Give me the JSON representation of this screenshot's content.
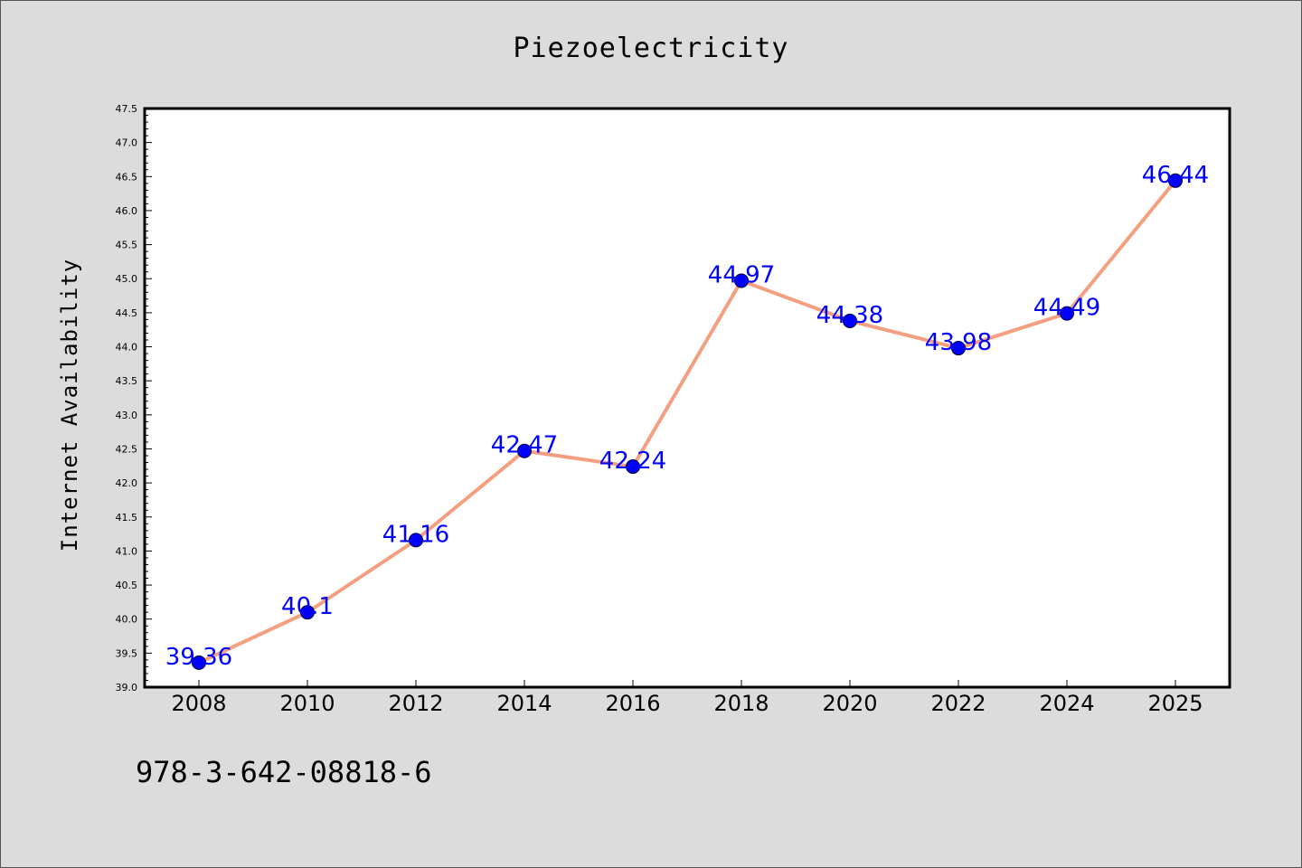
{
  "chart_data": {
    "type": "line",
    "title": "Piezoelectricity",
    "xlabel": "",
    "ylabel": "Internet Availability",
    "categories": [
      "2008",
      "2010",
      "2012",
      "2014",
      "2016",
      "2018",
      "2020",
      "2022",
      "2024",
      "2025"
    ],
    "values": [
      39.36,
      40.1,
      41.16,
      42.47,
      42.24,
      44.97,
      44.38,
      43.98,
      44.49,
      46.44
    ],
    "data_labels": [
      "39.36",
      "40.1",
      "41.16",
      "42.47",
      "42.24",
      "44.97",
      "44.38",
      "43.98",
      "44.49",
      "46.44"
    ],
    "ylim": [
      39.0,
      47.5
    ],
    "yticks": [
      "39.0",
      "39.5",
      "40.0",
      "40.5",
      "41.0",
      "41.5",
      "42.0",
      "42.5",
      "43.0",
      "43.5",
      "44.0",
      "44.5",
      "45.0",
      "45.5",
      "46.0",
      "46.5",
      "47.0",
      "47.5"
    ],
    "grid": false,
    "legend": "none",
    "line_color": "#f4a080",
    "marker_color": "#0000ff",
    "label_color": "#0000ff"
  },
  "footnote": "978-3-642-08818-6"
}
